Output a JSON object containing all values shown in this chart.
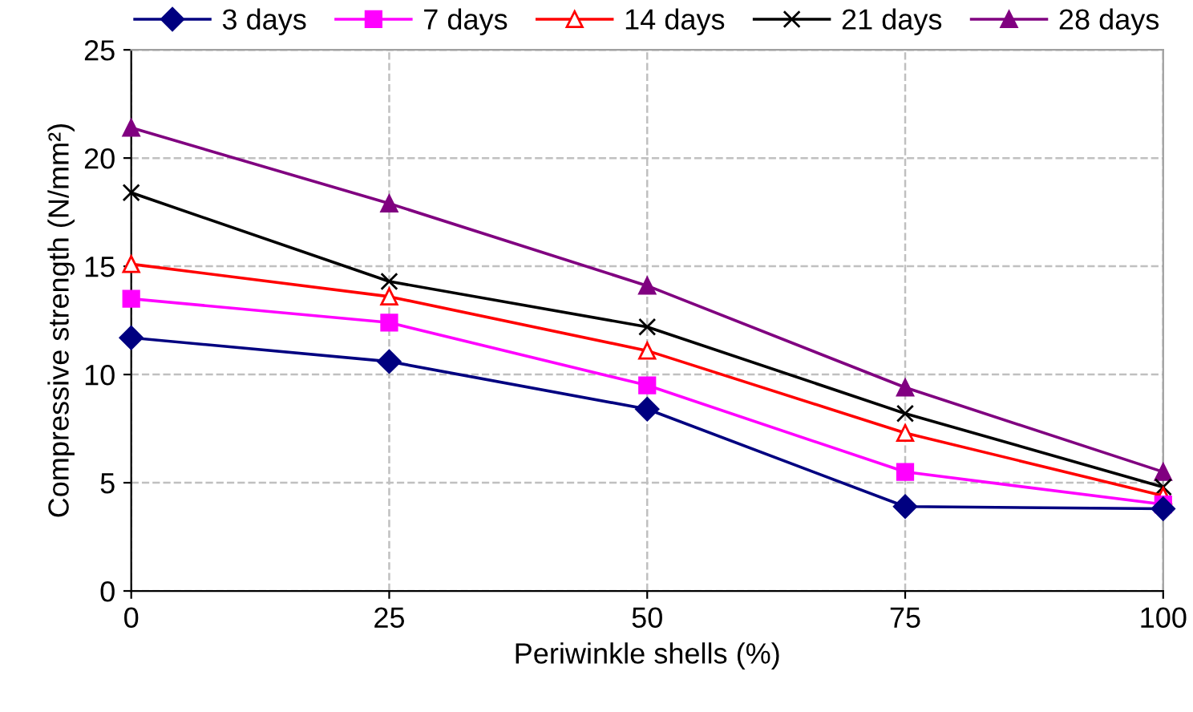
{
  "chart_data": {
    "type": "line",
    "xlabel": "Periwinkle shells (%)",
    "ylabel": "Compressive strength (N/mm²)",
    "x": [
      0,
      25,
      50,
      75,
      100
    ],
    "series": [
      {
        "name": "3 days",
        "color": "#000080",
        "marker": "diamond",
        "values": [
          11.7,
          10.6,
          8.4,
          3.9,
          3.8
        ]
      },
      {
        "name": "7 days",
        "color": "#ff00ff",
        "marker": "square",
        "values": [
          13.5,
          12.4,
          9.5,
          5.5,
          4.0
        ]
      },
      {
        "name": "14 days",
        "color": "#ff0000",
        "marker": "triangle_open",
        "values": [
          15.1,
          13.6,
          11.1,
          7.3,
          4.4
        ]
      },
      {
        "name": "21 days",
        "color": "#000000",
        "marker": "cross",
        "values": [
          18.4,
          14.3,
          12.2,
          8.2,
          4.8
        ]
      },
      {
        "name": "28 days",
        "color": "#800080",
        "marker": "triangle",
        "values": [
          21.4,
          17.9,
          14.1,
          9.4,
          5.5
        ]
      }
    ],
    "xlim": [
      0,
      100
    ],
    "xticks": [
      0,
      25,
      50,
      75,
      100
    ],
    "ylim": [
      0,
      25
    ],
    "yticks": [
      0,
      5,
      10,
      15,
      20,
      25
    ],
    "grid": true,
    "legend": "top",
    "line_style": "solid"
  }
}
